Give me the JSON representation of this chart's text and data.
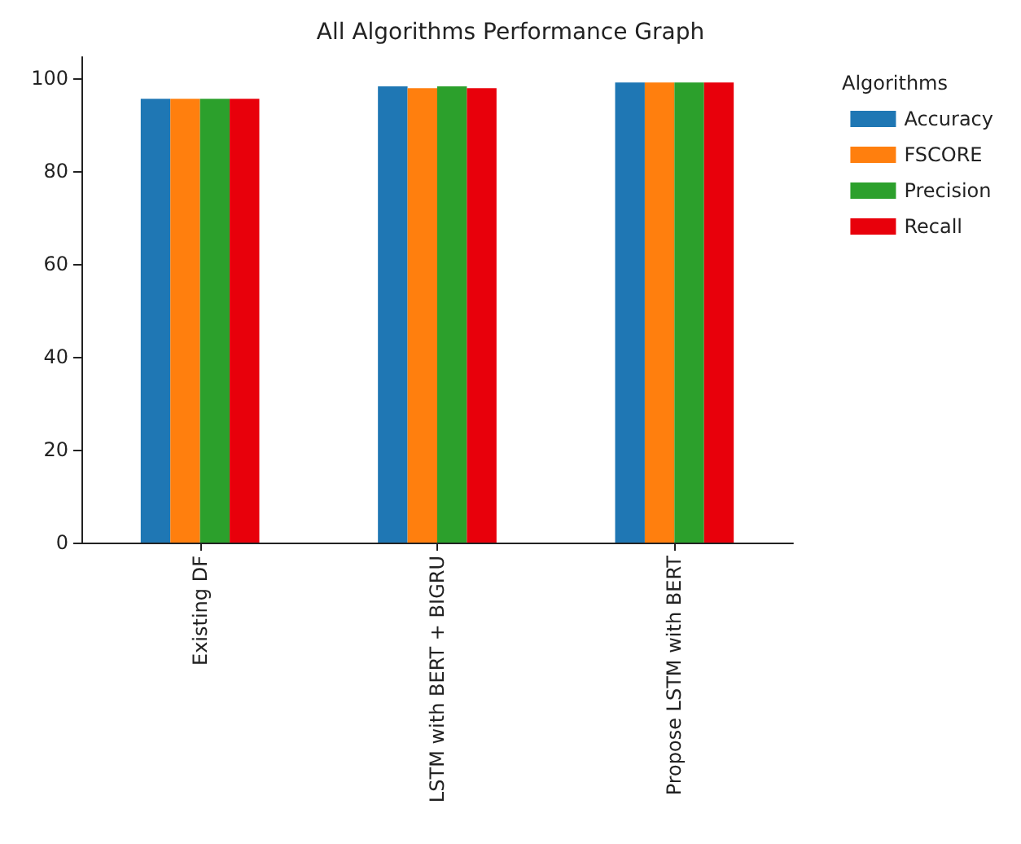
{
  "chart_data": {
    "type": "bar",
    "title": "All Algorithms Performance Graph",
    "legend_title": "Algorithms",
    "categories": [
      "Existing DF",
      "LSTM with BERT + BIGRU",
      "Propose LSTM with BERT"
    ],
    "series": [
      {
        "name": "Accuracy",
        "color": "#1f77b4",
        "values": [
          95.5,
          98.2,
          99
        ]
      },
      {
        "name": "FSCORE",
        "color": "#ff7f0e",
        "values": [
          95.5,
          97.8,
          99
        ]
      },
      {
        "name": "Precision",
        "color": "#2ca02c",
        "values": [
          95.5,
          98.2,
          99
        ]
      },
      {
        "name": "Recall",
        "color": "#e8000b",
        "values": [
          95.5,
          97.8,
          99
        ]
      }
    ],
    "ylim": [
      0,
      104.5
    ],
    "yticks": [
      0,
      20,
      40,
      60,
      80,
      100
    ],
    "grid": false,
    "legend": "top right"
  }
}
